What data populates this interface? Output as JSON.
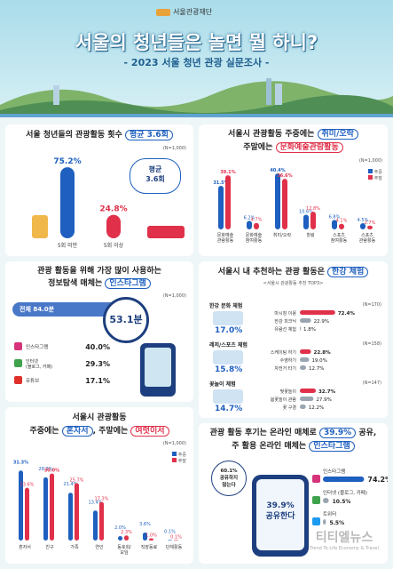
{
  "header": {
    "logo": "서울관광재단",
    "title": "서울의 청년들은 놀면 뭘 하니?",
    "subtitle": "- 2023 서울 청년 관광 실문조사 -"
  },
  "colors": {
    "blue": "#1e5fbf",
    "red": "#e0304a",
    "gray": "#9aa5b1"
  },
  "freq": {
    "title_pre": "서울 청년들의 관광활동 횟수 ",
    "title_hl": "평균 3.6회",
    "n": "(N=1,000)",
    "bubble_line1": "평균",
    "bubble_line2": "3.6회"
  },
  "season": {
    "title_l1_pre": "서울시 관광활동 주중에는 ",
    "title_l1_hl": "취미/오락",
    "title_l2_pre": "주말에는 ",
    "title_l2_hl": "문화예술관람활동",
    "n": "(N=1,000)",
    "legend_weekday": "주중",
    "legend_weekend": "주말"
  },
  "info": {
    "title_l1": "관광 활동을 위해 가장 많이 사용하는",
    "title_l2_pre": "정보탐색 매체는 ",
    "title_l2_hl": "인스타그램",
    "n": "(N=1,000)",
    "total_label": "전체 84.0분",
    "clock_value": "53.1분"
  },
  "recommend": {
    "title_pre": "서울시 내 추천하는 관광 활동은 ",
    "title_hl": "한강 체험",
    "subtitle": "<서울시 관광활동 추천 TOP3>",
    "groups": [
      {
        "name": "한강 문화 체험",
        "total": "17.0%",
        "n": "(N=170)",
        "items": [
          {
            "label": "마시징 이용",
            "value": 72.4
          },
          {
            "label": "한강 피크닉",
            "value": 22.9
          },
          {
            "label": "유람선 체험",
            "value": 1.8
          }
        ]
      },
      {
        "name": "레저/스포츠 체험",
        "total": "15.8%",
        "n": "(N=158)",
        "items": [
          {
            "label": "스케이팅 하기",
            "value": 22.8
          },
          {
            "label": "수영하기",
            "value": 19.0
          },
          {
            "label": "자전거 타기",
            "value": 12.7
          }
        ]
      },
      {
        "name": "꽃놀이 체험",
        "total": "14.7%",
        "n": "(N=147)",
        "items": [
          {
            "label": "벚꽃놀이",
            "value": 32.7
          },
          {
            "label": "봄꽃놀이 관람",
            "value": 27.9
          },
          {
            "label": "꽃 구경",
            "value": 12.2
          }
        ]
      }
    ]
  },
  "companion": {
    "title_l1": "서울시 관광활동",
    "title_l2_a": "주중에는 ",
    "title_l2_hl1": "혼자서",
    "title_l2_b": ", 주말에는 ",
    "title_l2_hl2": "여럿이서",
    "n": "(N=1,000)",
    "legend_weekday": "주중",
    "legend_weekend": "주말"
  },
  "online": {
    "title_l1_a": "관광 활동 후기는 온라인 매체로 ",
    "title_l1_hl": "39.9%",
    "title_l1_b": " 공유,",
    "title_l2_a": "주 활용 온라인 매체는 ",
    "title_l2_hl": "인스타그램",
    "bubble_top_l1": "60.1%",
    "bubble_top_l2": "공유하지",
    "bubble_top_l3": "않는다",
    "bubble_main_l1": "39.9%",
    "bubble_main_l2": "공유한다"
  },
  "watermark": {
    "main": "티티엘뉴스",
    "sub": "Trend To Life Economy & Travel"
  },
  "chart_data": [
    {
      "type": "bar",
      "id": "freq",
      "categories": [
        "5회 미만",
        "5회 이상"
      ],
      "values": [
        75.2,
        24.8
      ],
      "n": "(N=1,000)"
    },
    {
      "type": "bar",
      "id": "season",
      "categories": [
        "문화예술 관람활동",
        "문화예술 참여활동",
        "취미/오락",
        "힐링",
        "스포츠 참여활동",
        "스포츠 관람활동"
      ],
      "series": [
        {
          "name": "주중",
          "values": [
            31.5,
            6.2,
            40.4,
            10.6,
            6.8,
            4.5
          ]
        },
        {
          "name": "주말",
          "values": [
            39.1,
            4.7,
            36.6,
            12.8,
            4.1,
            2.7
          ]
        }
      ],
      "ylim": [
        0,
        45
      ]
    },
    {
      "type": "bar",
      "id": "info_media",
      "orientation": "horizontal",
      "categories": [
        "인스타그램",
        "인터넷 (블로그, 카페)",
        "유튜브"
      ],
      "values": [
        40.0,
        29.3,
        17.1
      ]
    },
    {
      "type": "bar",
      "id": "companion",
      "categories": [
        "혼자서",
        "친구",
        "가족",
        "연인",
        "동호회/ 모임",
        "직장동료",
        "단체활동"
      ],
      "series": [
        {
          "name": "주중",
          "values": [
            31.3,
            28.3,
            21.4,
            13.4,
            2.0,
            3.6,
            0.1
          ]
        },
        {
          "name": "주말",
          "values": [
            23.6,
            30.0,
            25.7,
            17.3,
            2.3,
            1.0,
            0.1
          ]
        }
      ],
      "ylim": [
        0,
        35
      ]
    },
    {
      "type": "bar",
      "id": "online_media",
      "orientation": "horizontal",
      "categories": [
        "인스타그램",
        "인터넷 (블로그, 카페)",
        "트위터"
      ],
      "values": [
        74.2,
        10.5,
        5.5
      ]
    }
  ]
}
